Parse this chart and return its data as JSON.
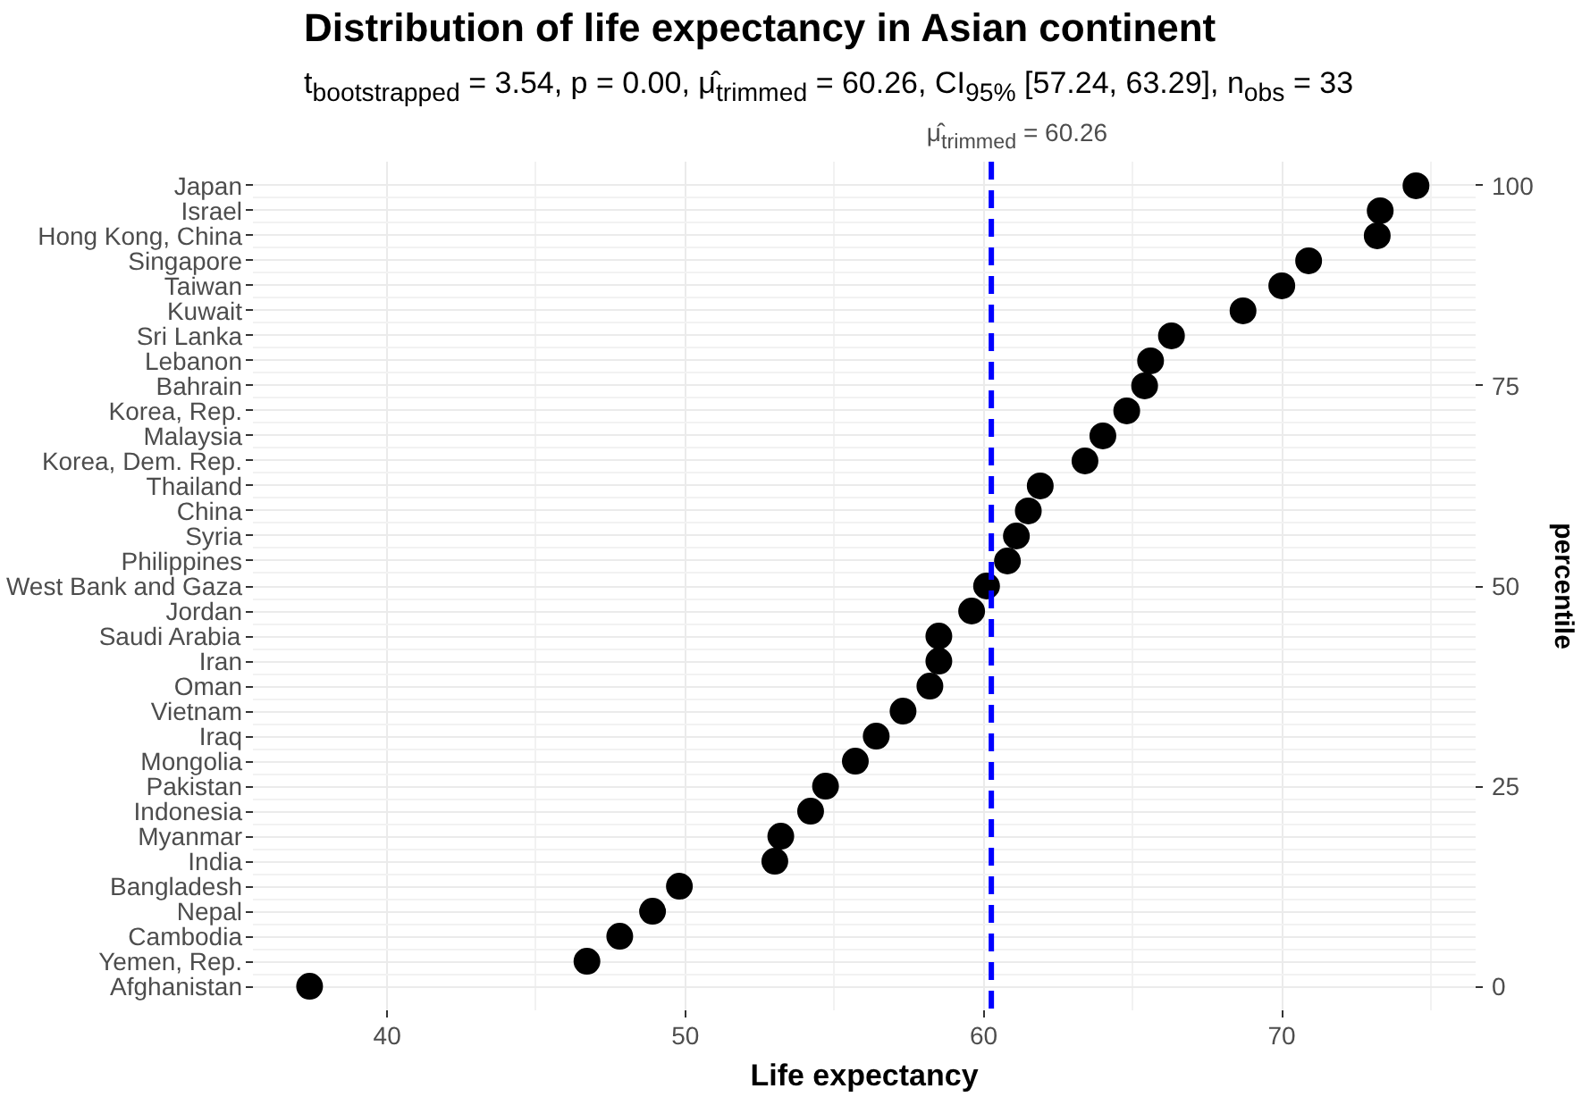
{
  "chart_data": {
    "type": "scatter",
    "title": "Distribution of life expectancy in Asian continent",
    "subtitle": "t$_{bootstrapped}$ = 3.54, p = 0.00, μ̂$_{trimmed}$ = 60.26, CI$_{95%}$ [57.24, 63.29], n$_{obs}$ = 33",
    "xlabel": "Life expectancy",
    "y2label": "percentile",
    "orientation": "horizontal",
    "categories": [
      "Japan",
      "Israel",
      "Hong Kong, China",
      "Singapore",
      "Taiwan",
      "Kuwait",
      "Sri Lanka",
      "Lebanon",
      "Bahrain",
      "Korea, Rep.",
      "Malaysia",
      "Korea, Dem. Rep.",
      "Thailand",
      "China",
      "Syria",
      "Philippines",
      "West Bank and Gaza",
      "Jordan",
      "Saudi Arabia",
      "Iran",
      "Oman",
      "Vietnam",
      "Iraq",
      "Mongolia",
      "Pakistan",
      "Indonesia",
      "Myanmar",
      "India",
      "Bangladesh",
      "Nepal",
      "Cambodia",
      "Yemen, Rep.",
      "Afghanistan"
    ],
    "values": [
      74.5,
      73.3,
      73.2,
      70.9,
      70.0,
      68.7,
      66.3,
      65.6,
      65.4,
      64.8,
      64.0,
      63.4,
      61.9,
      61.5,
      61.1,
      60.8,
      60.1,
      59.6,
      58.5,
      58.5,
      58.2,
      57.3,
      56.4,
      55.7,
      54.7,
      54.2,
      53.2,
      53.0,
      49.8,
      48.9,
      47.8,
      46.7,
      37.4
    ],
    "color": "#000000",
    "marker": "circle",
    "grid": true,
    "xlim": [
      35.5,
      76.5
    ],
    "xticks": [
      40,
      50,
      60,
      70
    ],
    "y2lim": [
      -3,
      103
    ],
    "y2ticks": [
      0,
      25,
      50,
      75,
      100
    ],
    "ref_lines": [
      {
        "axis": "x",
        "value": 60.26,
        "label": "μ̂$_{trimmed}$ = 60.26",
        "color": "#0000ff",
        "line_style": "dashed"
      }
    ]
  }
}
